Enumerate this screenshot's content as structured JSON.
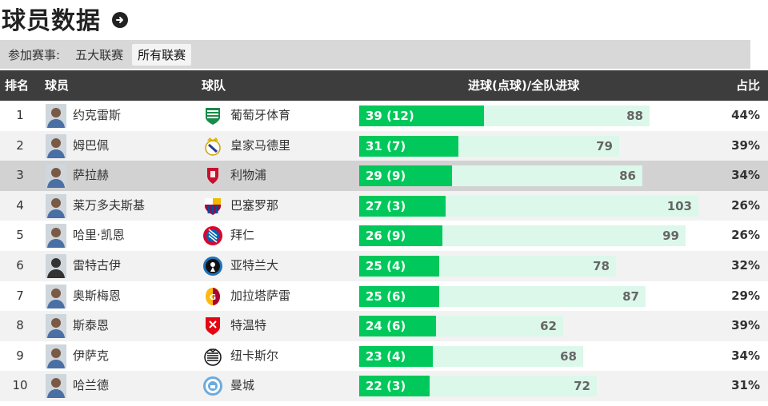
{
  "header": {
    "title": "球员数据"
  },
  "filter": {
    "label": "参加赛事:",
    "options": [
      {
        "label": "五大联赛",
        "active": false
      },
      {
        "label": "所有联赛",
        "active": true
      }
    ]
  },
  "table": {
    "columns": {
      "rank": "排名",
      "player": "球员",
      "team": "球队",
      "goals": "进球(点球)/全队进球",
      "ratio": "占比"
    },
    "colors": {
      "goals_bar": "#00c85a",
      "team_bar": "#dcf8ea",
      "header_bg": "#3d3d3d"
    },
    "rows": [
      {
        "rank": "1",
        "player": "约克雷斯",
        "team": "葡萄牙体育",
        "goals_label": "39 (12)",
        "goals": 39,
        "team_goals": 88,
        "team_goals_label": "88",
        "ratio": "44%",
        "crest_icon": "sporting-crest-icon"
      },
      {
        "rank": "2",
        "player": "姆巴佩",
        "team": "皇家马德里",
        "goals_label": "31 (7)",
        "goals": 31,
        "team_goals": 79,
        "team_goals_label": "79",
        "ratio": "39%",
        "crest_icon": "real-madrid-crest-icon"
      },
      {
        "rank": "3",
        "player": "萨拉赫",
        "team": "利物浦",
        "goals_label": "29 (9)",
        "goals": 29,
        "team_goals": 86,
        "team_goals_label": "86",
        "ratio": "34%",
        "crest_icon": "liverpool-crest-icon"
      },
      {
        "rank": "4",
        "player": "莱万多夫斯基",
        "team": "巴塞罗那",
        "goals_label": "27 (3)",
        "goals": 27,
        "team_goals": 103,
        "team_goals_label": "103",
        "ratio": "26%",
        "crest_icon": "barcelona-crest-icon"
      },
      {
        "rank": "5",
        "player": "哈里·凯恩",
        "team": "拜仁",
        "goals_label": "26 (9)",
        "goals": 26,
        "team_goals": 99,
        "team_goals_label": "99",
        "ratio": "26%",
        "crest_icon": "bayern-crest-icon"
      },
      {
        "rank": "6",
        "player": "雷特古伊",
        "team": "亚特兰大",
        "goals_label": "25 (4)",
        "goals": 25,
        "team_goals": 78,
        "team_goals_label": "78",
        "ratio": "32%",
        "crest_icon": "atalanta-crest-icon"
      },
      {
        "rank": "7",
        "player": "奥斯梅恩",
        "team": "加拉塔萨雷",
        "goals_label": "25 (6)",
        "goals": 25,
        "team_goals": 87,
        "team_goals_label": "87",
        "ratio": "29%",
        "crest_icon": "galatasaray-crest-icon"
      },
      {
        "rank": "8",
        "player": "斯泰恩",
        "team": "特温特",
        "goals_label": "24 (6)",
        "goals": 24,
        "team_goals": 62,
        "team_goals_label": "62",
        "ratio": "39%",
        "crest_icon": "twente-crest-icon"
      },
      {
        "rank": "9",
        "player": "伊萨克",
        "team": "纽卡斯尔",
        "goals_label": "23 (4)",
        "goals": 23,
        "team_goals": 68,
        "team_goals_label": "68",
        "ratio": "34%",
        "crest_icon": "newcastle-crest-icon"
      },
      {
        "rank": "10",
        "player": "哈兰德",
        "team": "曼城",
        "goals_label": "22 (3)",
        "goals": 22,
        "team_goals": 72,
        "team_goals_label": "72",
        "ratio": "31%",
        "crest_icon": "man-city-crest-icon"
      }
    ]
  }
}
